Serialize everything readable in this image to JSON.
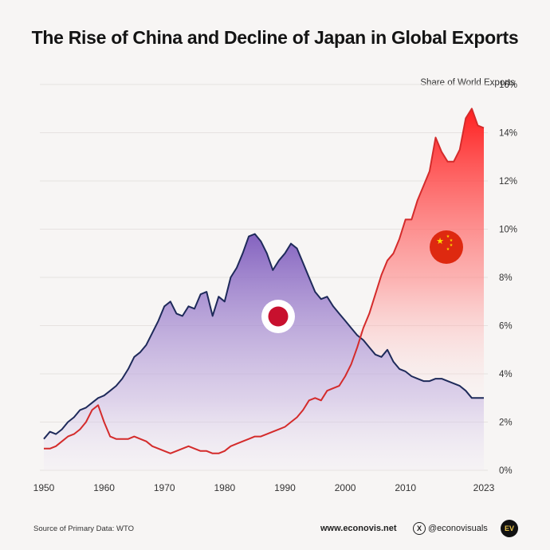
{
  "title": "The Rise of China and Decline of Japan in Global Exports",
  "footer": {
    "source": "Source of Primary Data: WTO",
    "website": "www.econovis.net",
    "social": "@econovisuals",
    "social_icon": "x-logo-icon",
    "logo_text": "EV"
  },
  "colors": {
    "japan_line": "#1e2a5a",
    "japan_fill_top": "#7e5bbd",
    "china_line": "#d42b2b",
    "china_fill_top": "#ff1f1f"
  },
  "chart_data": {
    "type": "area",
    "title": "The Rise of China and Decline of Japan in Global Exports",
    "xlabel": "",
    "ylabel": "Share of World Exports",
    "xlim": [
      1950,
      2023
    ],
    "ylim": [
      0,
      16
    ],
    "x_ticks": [
      "1950",
      "1960",
      "1970",
      "1980",
      "1990",
      "2000",
      "2010",
      "2023"
    ],
    "x_tick_values": [
      1950,
      1960,
      1970,
      1980,
      1990,
      2000,
      2010,
      2023
    ],
    "y_ticks": [
      "0%",
      "2%",
      "4%",
      "6%",
      "8%",
      "10%",
      "12%",
      "14%",
      "16%"
    ],
    "y_tick_values": [
      0,
      2,
      4,
      6,
      8,
      10,
      12,
      14,
      16
    ],
    "grid": true,
    "series": [
      {
        "name": "Japan",
        "icon": "japan-flag-icon",
        "x": [
          1950,
          1951,
          1952,
          1953,
          1954,
          1955,
          1956,
          1957,
          1958,
          1959,
          1960,
          1961,
          1962,
          1963,
          1964,
          1965,
          1966,
          1967,
          1968,
          1969,
          1970,
          1971,
          1972,
          1973,
          1974,
          1975,
          1976,
          1977,
          1978,
          1979,
          1980,
          1981,
          1982,
          1983,
          1984,
          1985,
          1986,
          1987,
          1988,
          1989,
          1990,
          1991,
          1992,
          1993,
          1994,
          1995,
          1996,
          1997,
          1998,
          1999,
          2000,
          2001,
          2002,
          2003,
          2004,
          2005,
          2006,
          2007,
          2008,
          2009,
          2010,
          2011,
          2012,
          2013,
          2014,
          2015,
          2016,
          2017,
          2018,
          2019,
          2020,
          2021,
          2022,
          2023
        ],
        "values": [
          1.3,
          1.6,
          1.5,
          1.7,
          2.0,
          2.2,
          2.5,
          2.6,
          2.8,
          3.0,
          3.1,
          3.3,
          3.5,
          3.8,
          4.2,
          4.7,
          4.9,
          5.2,
          5.7,
          6.2,
          6.8,
          7.0,
          6.5,
          6.4,
          6.8,
          6.7,
          7.3,
          7.4,
          6.4,
          7.2,
          7.0,
          8.0,
          8.4,
          9.0,
          9.7,
          9.8,
          9.5,
          9.0,
          8.3,
          8.7,
          9.0,
          9.4,
          9.2,
          8.6,
          8.0,
          7.4,
          7.1,
          7.2,
          6.8,
          6.5,
          6.2,
          5.9,
          5.6,
          5.4,
          5.1,
          4.8,
          4.7,
          5.0,
          4.5,
          4.2,
          4.1,
          3.9,
          3.8,
          3.7,
          3.7,
          3.8,
          3.8,
          3.7,
          3.6,
          3.5,
          3.3,
          3.0,
          3.0,
          3.0
        ]
      },
      {
        "name": "China",
        "icon": "china-flag-icon",
        "x": [
          1950,
          1951,
          1952,
          1953,
          1954,
          1955,
          1956,
          1957,
          1958,
          1959,
          1960,
          1961,
          1962,
          1963,
          1964,
          1965,
          1966,
          1967,
          1968,
          1969,
          1970,
          1971,
          1972,
          1973,
          1974,
          1975,
          1976,
          1977,
          1978,
          1979,
          1980,
          1981,
          1982,
          1983,
          1984,
          1985,
          1986,
          1987,
          1988,
          1989,
          1990,
          1991,
          1992,
          1993,
          1994,
          1995,
          1996,
          1997,
          1998,
          1999,
          2000,
          2001,
          2002,
          2003,
          2004,
          2005,
          2006,
          2007,
          2008,
          2009,
          2010,
          2011,
          2012,
          2013,
          2014,
          2015,
          2016,
          2017,
          2018,
          2019,
          2020,
          2021,
          2022,
          2023
        ],
        "values": [
          0.9,
          0.9,
          1.0,
          1.2,
          1.4,
          1.5,
          1.7,
          2.0,
          2.5,
          2.7,
          2.0,
          1.4,
          1.3,
          1.3,
          1.3,
          1.4,
          1.3,
          1.2,
          1.0,
          0.9,
          0.8,
          0.7,
          0.8,
          0.9,
          1.0,
          0.9,
          0.8,
          0.8,
          0.7,
          0.7,
          0.8,
          1.0,
          1.1,
          1.2,
          1.3,
          1.4,
          1.4,
          1.5,
          1.6,
          1.7,
          1.8,
          2.0,
          2.2,
          2.5,
          2.9,
          3.0,
          2.9,
          3.3,
          3.4,
          3.5,
          3.9,
          4.4,
          5.1,
          5.9,
          6.5,
          7.3,
          8.1,
          8.7,
          9.0,
          9.6,
          10.4,
          10.4,
          11.2,
          11.8,
          12.4,
          13.8,
          13.2,
          12.8,
          12.8,
          13.3,
          14.6,
          15.0,
          14.3,
          14.2
        ]
      }
    ]
  }
}
